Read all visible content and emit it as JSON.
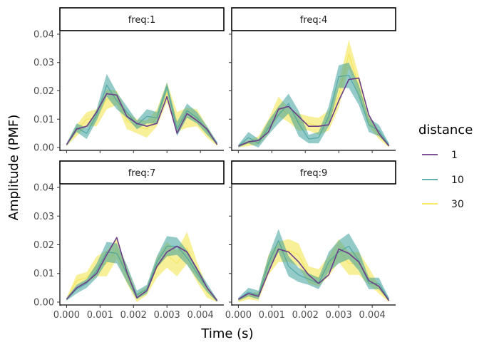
{
  "chart_data": {
    "type": "line",
    "xlabel": "Time (s)",
    "ylabel": "Amplitude (PMF)",
    "xlim": [
      -0.0002,
      0.0047
    ],
    "ylim": [
      -0.001,
      0.041
    ],
    "x_ticks": [
      0.0,
      0.001,
      0.002,
      0.003,
      0.004
    ],
    "x_tick_labels": [
      "0.000",
      "0.001",
      "0.002",
      "0.003",
      "0.004"
    ],
    "y_ticks": [
      0.0,
      0.01,
      0.02,
      0.03,
      0.04
    ],
    "y_tick_labels": [
      "0.00",
      "0.01",
      "0.02",
      "0.03",
      "0.04"
    ],
    "grid": false,
    "legend": {
      "title": "distance",
      "position": "right",
      "entries": [
        {
          "label": "1",
          "color": "#6b3d8a"
        },
        {
          "label": "10",
          "color": "#3c9f9b"
        },
        {
          "label": "30",
          "color": "#f2e346"
        }
      ]
    },
    "x_grid": [
      0.0,
      0.0003,
      0.0006,
      0.0009,
      0.0012,
      0.0015,
      0.0018,
      0.0021,
      0.0024,
      0.0027,
      0.003,
      0.0033,
      0.0036,
      0.0039,
      0.0042,
      0.0045
    ],
    "panels": [
      {
        "strip": "freq:1",
        "series": [
          {
            "name": "1",
            "y": [
              0.001,
              0.0065,
              0.0075,
              0.0125,
              0.019,
              0.0185,
              0.011,
              0.0085,
              0.0075,
              0.0085,
              0.018,
              0.005,
              0.012,
              0.0095,
              0.0065,
              0.001
            ]
          },
          {
            "name": "10",
            "y": [
              0.001,
              0.007,
              0.005,
              0.0115,
              0.022,
              0.0165,
              0.0125,
              0.008,
              0.011,
              0.0105,
              0.0215,
              0.0065,
              0.013,
              0.0105,
              0.006,
              0.0015
            ],
            "band": [
              0.0005,
              0.0015,
              0.002,
              0.002,
              0.004,
              0.003,
              0.002,
              0.0015,
              0.0025,
              0.002,
              0.0015,
              0.0025,
              0.0025,
              0.002,
              0.0015,
              0.0005
            ]
          },
          {
            "name": "30",
            "y": [
              0.001,
              0.006,
              0.01,
              0.0105,
              0.017,
              0.0175,
              0.0095,
              0.0075,
              0.0065,
              0.0105,
              0.0195,
              0.009,
              0.0105,
              0.0105,
              0.0055,
              0.001
            ],
            "band": [
              0.0005,
              0.002,
              0.0025,
              0.003,
              0.0035,
              0.0025,
              0.003,
              0.0025,
              0.003,
              0.003,
              0.0035,
              0.0035,
              0.0035,
              0.003,
              0.002,
              0.0005
            ]
          }
        ]
      },
      {
        "strip": "freq:4",
        "series": [
          {
            "name": "1",
            "y": [
              0.0005,
              0.002,
              0.0025,
              0.0055,
              0.0135,
              0.0145,
              0.011,
              0.0075,
              0.0075,
              0.008,
              0.0165,
              0.024,
              0.0245,
              0.0115,
              0.005,
              0.0005
            ]
          },
          {
            "name": "10",
            "y": [
              0.0005,
              0.0035,
              0.0015,
              0.007,
              0.0115,
              0.0155,
              0.0085,
              0.003,
              0.0035,
              0.011,
              0.025,
              0.0255,
              0.0185,
              0.008,
              0.006,
              0.001
            ],
            "band": [
              0.0005,
              0.002,
              0.0015,
              0.0025,
              0.003,
              0.0035,
              0.0045,
              0.0015,
              0.002,
              0.0035,
              0.004,
              0.0045,
              0.0035,
              0.0025,
              0.002,
              0.0005
            ]
          },
          {
            "name": "30",
            "y": [
              0.0005,
              0.0015,
              0.0025,
              0.0075,
              0.0145,
              0.0115,
              0.009,
              0.0085,
              0.0075,
              0.0095,
              0.0185,
              0.033,
              0.0215,
              0.0095,
              0.0045,
              0.0005
            ],
            "band": [
              0.0005,
              0.001,
              0.0015,
              0.0025,
              0.0035,
              0.0025,
              0.003,
              0.0025,
              0.003,
              0.0035,
              0.0045,
              0.005,
              0.004,
              0.002,
              0.0015,
              0.0005
            ]
          }
        ]
      },
      {
        "strip": "freq:7",
        "series": [
          {
            "name": "1",
            "y": [
              0.001,
              0.005,
              0.007,
              0.01,
              0.0165,
              0.0225,
              0.0105,
              0.0015,
              0.004,
              0.0125,
              0.0175,
              0.0195,
              0.0175,
              0.0115,
              0.005,
              0.0005
            ]
          },
          {
            "name": "10",
            "y": [
              0.001,
              0.0045,
              0.0065,
              0.011,
              0.0175,
              0.017,
              0.01,
              0.0025,
              0.0045,
              0.014,
              0.0195,
              0.0195,
              0.0155,
              0.01,
              0.005,
              0.0005
            ],
            "band": [
              0.0005,
              0.0015,
              0.0015,
              0.0025,
              0.0035,
              0.0035,
              0.003,
              0.0015,
              0.0015,
              0.002,
              0.0035,
              0.003,
              0.0025,
              0.002,
              0.0015,
              0.0005
            ]
          },
          {
            "name": "30",
            "y": [
              0.001,
              0.0075,
              0.0085,
              0.0125,
              0.0135,
              0.0185,
              0.0095,
              0.0015,
              0.004,
              0.012,
              0.0165,
              0.0135,
              0.019,
              0.0105,
              0.0035,
              0.0005
            ],
            "band": [
              0.0005,
              0.002,
              0.002,
              0.0035,
              0.0045,
              0.0035,
              0.003,
              0.0015,
              0.0015,
              0.0035,
              0.0045,
              0.0045,
              0.0055,
              0.0035,
              0.002,
              0.0005
            ]
          }
        ]
      },
      {
        "strip": "freq:9",
        "series": [
          {
            "name": "1",
            "y": [
              0.001,
              0.003,
              0.002,
              0.0105,
              0.0185,
              0.0175,
              0.014,
              0.0095,
              0.0065,
              0.0095,
              0.0185,
              0.017,
              0.014,
              0.0075,
              0.0055,
              0.0005
            ]
          },
          {
            "name": "10",
            "y": [
              0.001,
              0.0035,
              0.0025,
              0.0135,
              0.0215,
              0.0125,
              0.0095,
              0.008,
              0.0065,
              0.014,
              0.0175,
              0.0195,
              0.0145,
              0.0065,
              0.0065,
              0.001
            ],
            "band": [
              0.0005,
              0.0015,
              0.0015,
              0.0025,
              0.004,
              0.0035,
              0.0025,
              0.002,
              0.002,
              0.0035,
              0.004,
              0.0045,
              0.0035,
              0.002,
              0.002,
              0.0005
            ]
          },
          {
            "name": "30",
            "y": [
              0.0005,
              0.002,
              0.002,
              0.013,
              0.0175,
              0.018,
              0.0165,
              0.0095,
              0.0085,
              0.0125,
              0.018,
              0.0135,
              0.0135,
              0.009,
              0.0045,
              0.0005
            ],
            "band": [
              0.0005,
              0.001,
              0.0015,
              0.0035,
              0.0035,
              0.004,
              0.004,
              0.003,
              0.003,
              0.0035,
              0.004,
              0.004,
              0.004,
              0.003,
              0.0015,
              0.0005
            ]
          }
        ]
      }
    ]
  }
}
